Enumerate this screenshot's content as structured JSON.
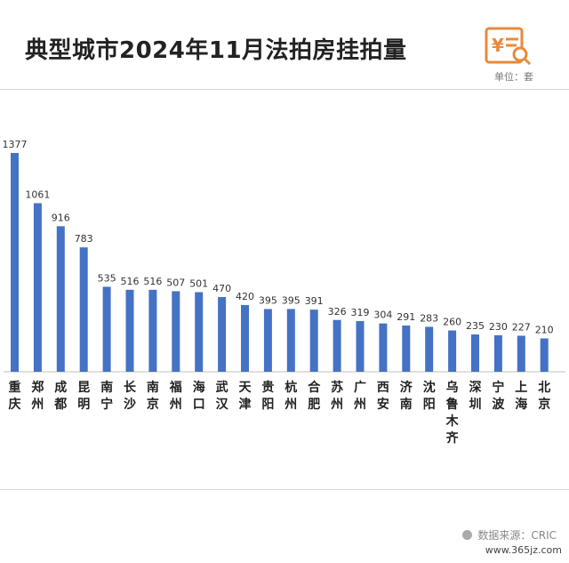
{
  "header": {
    "title": "典型城市2024年11月法拍房挂拍量",
    "unit": "单位：套",
    "logo_symbol": "¥"
  },
  "footer": {
    "source": "数据来源：CRIC",
    "watermark": "www.365jz.com"
  },
  "colors": {
    "bar": "#4472c4",
    "logo": "#e88a3d",
    "axis": "#bfbfbf"
  },
  "chart_data": {
    "type": "bar",
    "title": "典型城市2024年11月法拍房挂拍量",
    "xlabel": "",
    "ylabel": "",
    "ylim": [
      0,
      1377
    ],
    "categories": [
      "重庆",
      "郑州",
      "成都",
      "昆明",
      "南宁",
      "长沙",
      "南京",
      "福州",
      "海口",
      "武汉",
      "天津",
      "贵阳",
      "杭州",
      "合肥",
      "苏州",
      "广州",
      "西安",
      "济南",
      "沈阳",
      "乌鲁木齐",
      "深圳",
      "宁波",
      "上海",
      "北京"
    ],
    "values": [
      1377,
      1061,
      916,
      783,
      535,
      516,
      516,
      507,
      501,
      470,
      420,
      395,
      395,
      391,
      326,
      319,
      304,
      291,
      283,
      260,
      235,
      230,
      227,
      210
    ]
  }
}
